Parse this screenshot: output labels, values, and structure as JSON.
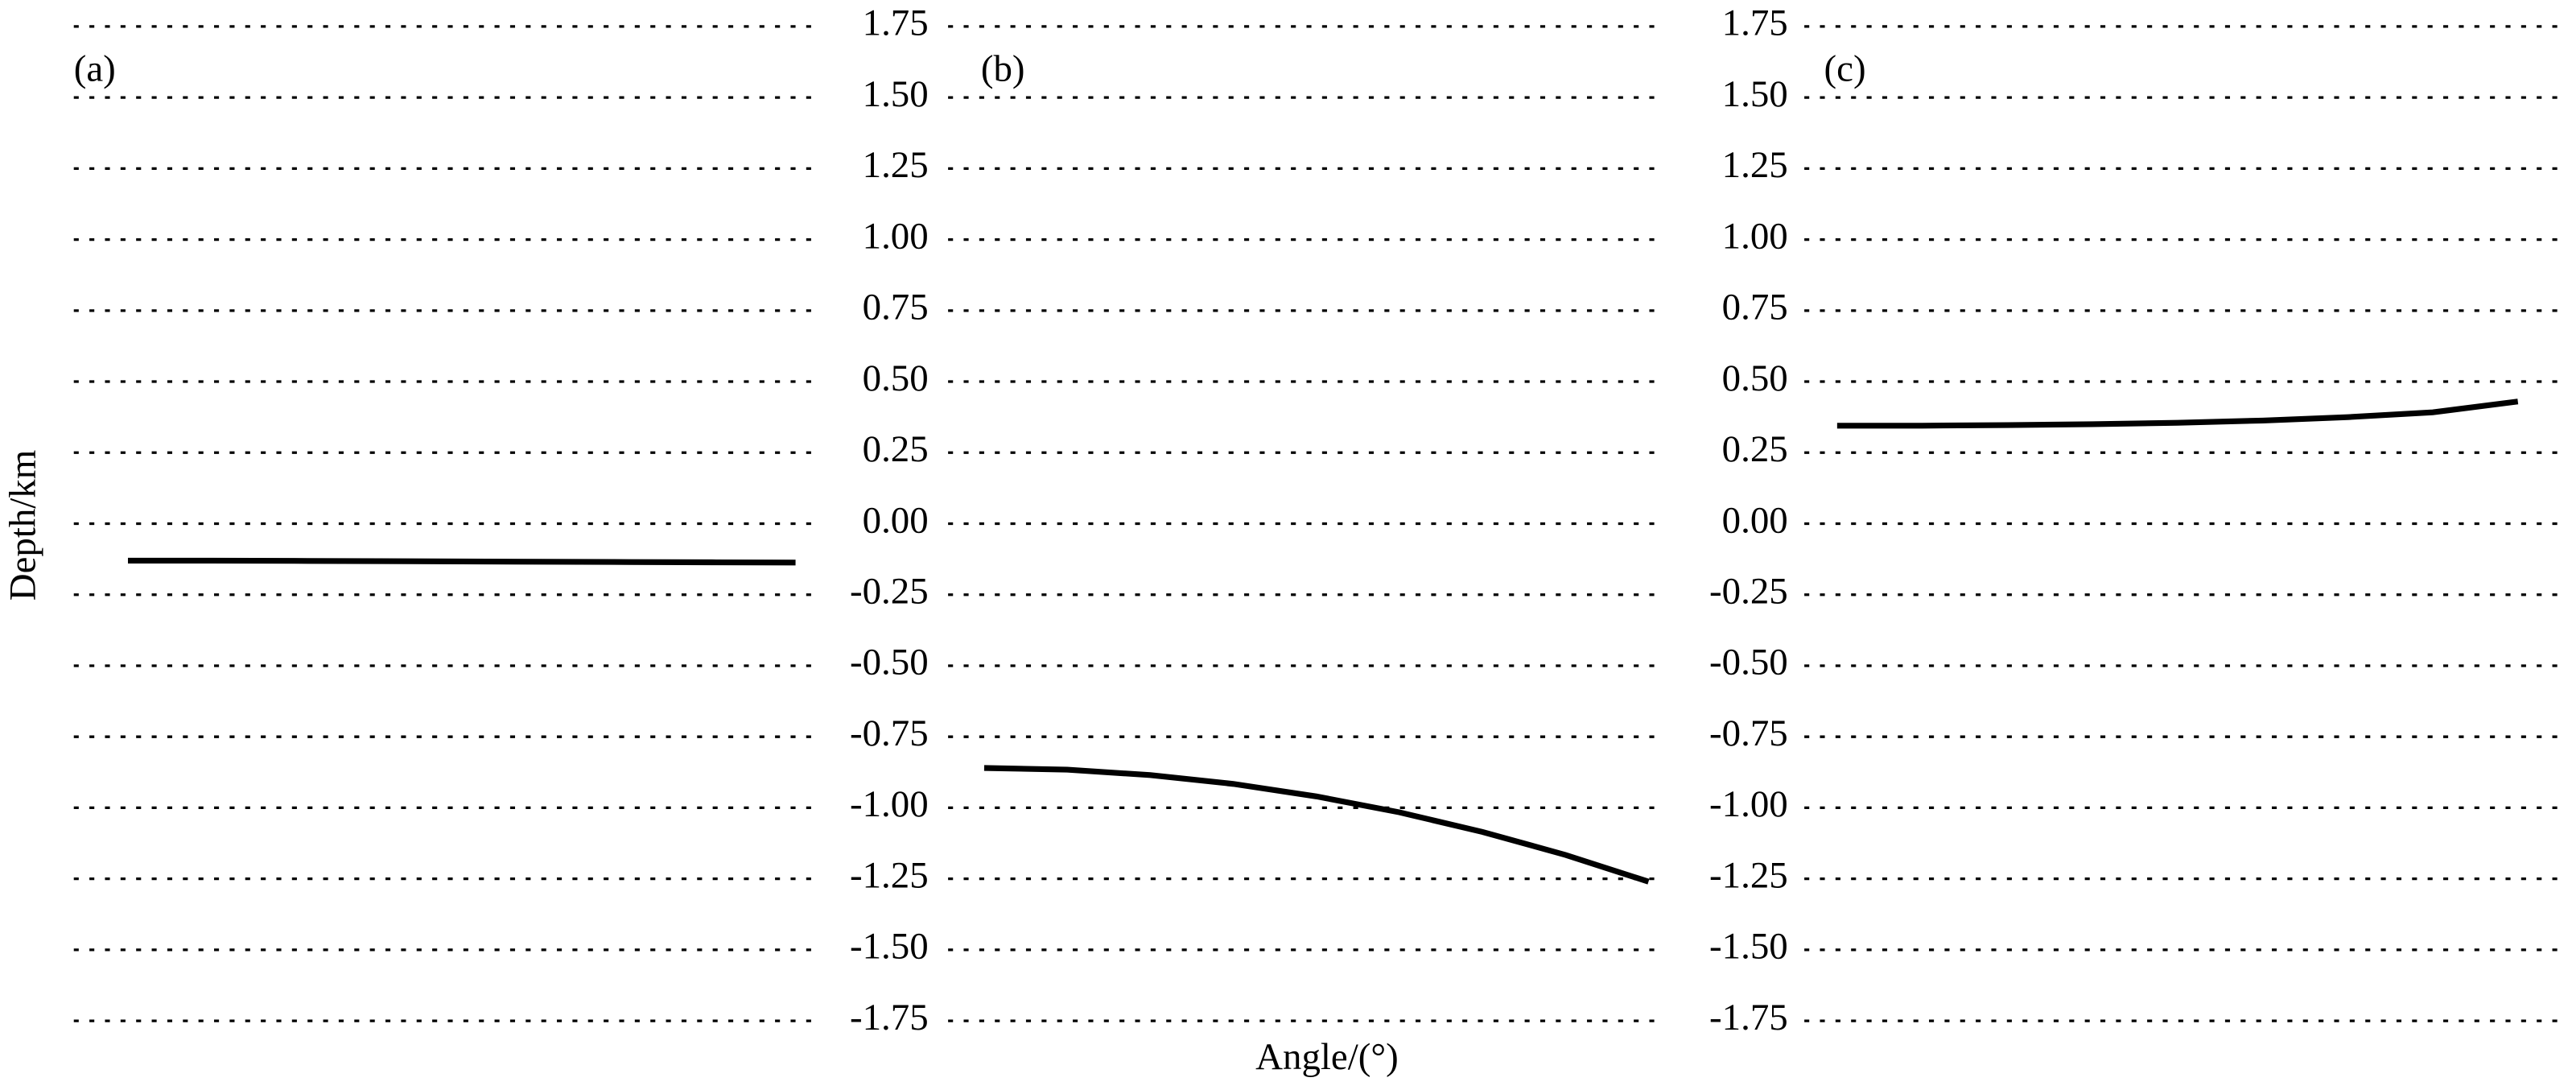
{
  "xlabel": "Angle/(°)",
  "ylabel": "Depth/km",
  "chart_data": [
    {
      "type": "line",
      "label": "(a)",
      "color": "#000000",
      "grid": true,
      "tick_labels": false,
      "ylim": [
        -1.75,
        1.75
      ],
      "yticks": [
        1.75,
        1.5,
        1.25,
        1,
        0.75,
        0.5,
        0.25,
        0,
        -0.25,
        -0.5,
        -0.75,
        -1,
        -1.25,
        -1.5,
        -1.75
      ],
      "values": [
        -0.13,
        -0.13,
        -0.131,
        -0.132,
        -0.133,
        -0.134,
        -0.135,
        -0.136,
        -0.137
      ]
    },
    {
      "type": "line",
      "label": "(b)",
      "color": "#000000",
      "grid": true,
      "tick_labels": true,
      "ylim": [
        -1.75,
        1.75
      ],
      "yticks": [
        1.75,
        {
          "value": 1.5,
          "label": "1.50"
        },
        1.25,
        {
          "value": 1,
          "label": "1.00"
        },
        0.75,
        {
          "value": 0.5,
          "label": "0.50"
        },
        0.25,
        {
          "value": 0,
          "label": "0.00"
        },
        -0.25,
        {
          "value": -0.5,
          "label": "-0.50"
        },
        -0.75,
        {
          "value": -1,
          "label": "-1.00"
        },
        -1.25,
        {
          "value": -1.5,
          "label": "-1.50"
        },
        -1.75
      ],
      "values": [
        -0.86,
        -0.866,
        -0.885,
        -0.916,
        -0.96,
        -1.016,
        -1.085,
        -1.166,
        -1.26
      ]
    },
    {
      "type": "line",
      "label": "(c)",
      "color": "#000000",
      "grid": true,
      "tick_labels": true,
      "ylim": [
        -1.75,
        1.75
      ],
      "yticks": [
        1.75,
        {
          "value": 1.5,
          "label": "1.50"
        },
        1.25,
        {
          "value": 1,
          "label": "1.00"
        },
        0.75,
        {
          "value": 0.5,
          "label": "0.50"
        },
        0.25,
        {
          "value": 0,
          "label": "0.00"
        },
        -0.25,
        {
          "value": -0.5,
          "label": "-0.50"
        },
        -0.75,
        {
          "value": -1,
          "label": "-1.00"
        },
        -1.25,
        {
          "value": -1.5,
          "label": "-1.50"
        },
        -1.75
      ],
      "values": [
        0.345,
        0.345,
        0.347,
        0.35,
        0.355,
        0.363,
        0.375,
        0.392,
        0.43
      ]
    }
  ]
}
